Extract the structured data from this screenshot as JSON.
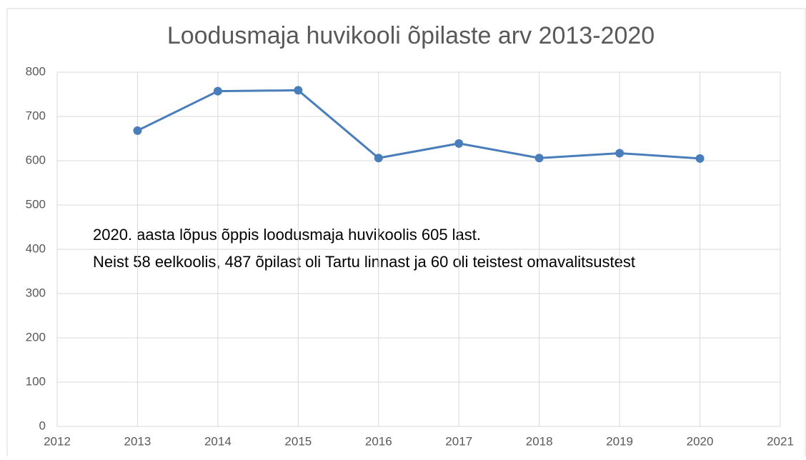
{
  "chart_data": {
    "type": "line",
    "title": "Loodusmaja huvikooli õpilaste arv 2013-2020",
    "annotations": [
      "2020. aasta lõpus õppis loodusmaja huvikoolis 605 last.",
      "Neist 58 eelkoolis, 487 õpilast oli Tartu linnast ja 60 oli teistest omavalitsustest"
    ],
    "x": [
      2013,
      2014,
      2015,
      2016,
      2017,
      2018,
      2019,
      2020
    ],
    "series": [
      {
        "name": "Õpilaste arv",
        "color": "#4a7ebb",
        "values": [
          668,
          757,
          759,
          606,
          639,
          606,
          617,
          605
        ]
      }
    ],
    "xlim": [
      2012,
      2021
    ],
    "xticks": [
      2012,
      2013,
      2014,
      2015,
      2016,
      2017,
      2018,
      2019,
      2020,
      2021
    ],
    "ylim": [
      0,
      800
    ],
    "yticks": [
      0,
      100,
      200,
      300,
      400,
      500,
      600,
      700,
      800
    ],
    "grid": true,
    "legend": false
  }
}
